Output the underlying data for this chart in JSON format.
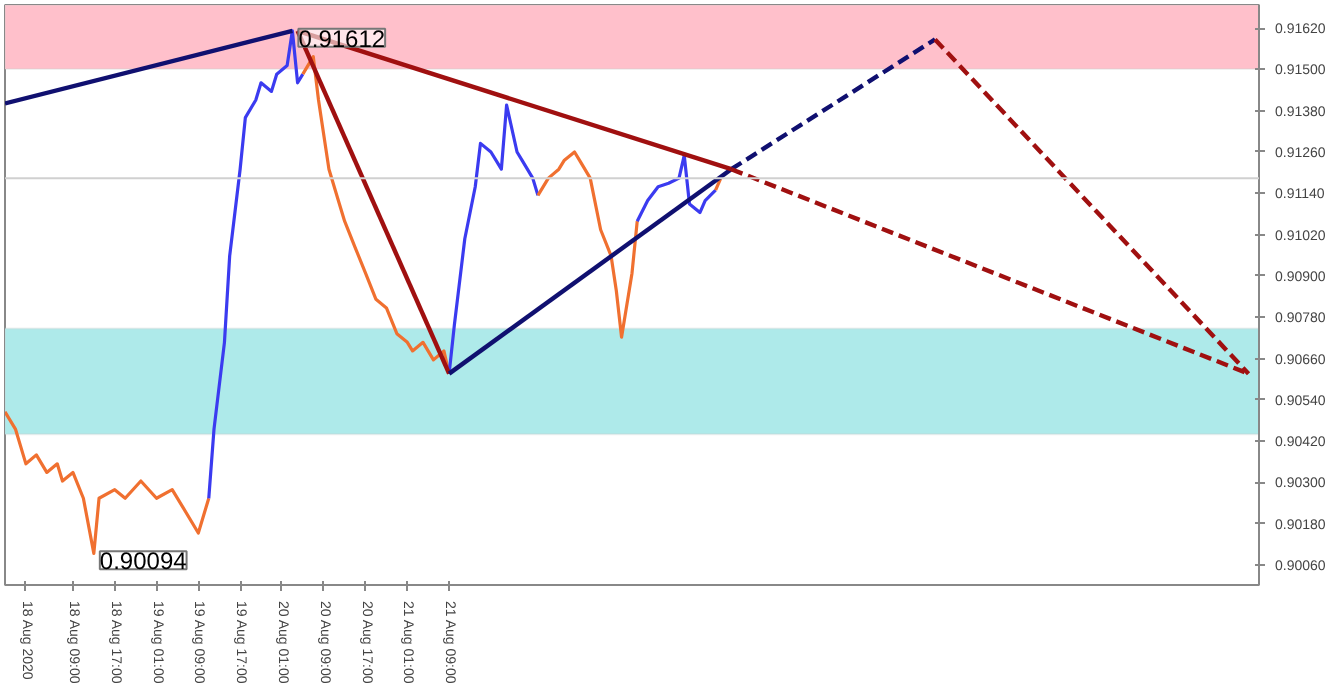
{
  "chart_data": {
    "type": "line",
    "grid": false,
    "xlim": [
      "2020-08-17T20:00",
      "2020-08-27T20:00"
    ],
    "ylim": [
      0.90002,
      0.91687
    ],
    "xticks": [
      {
        "value": "2020-08-18T00:00",
        "label": "18 Aug 2020"
      },
      {
        "value": "2020-08-18T09:00",
        "label": "18 Aug 09:00"
      },
      {
        "value": "2020-08-18T17:00",
        "label": "18 Aug 17:00"
      },
      {
        "value": "2020-08-19T01:00",
        "label": "19 Aug 01:00"
      },
      {
        "value": "2020-08-19T09:00",
        "label": "19 Aug 09:00"
      },
      {
        "value": "2020-08-19T17:00",
        "label": "19 Aug 17:00"
      },
      {
        "value": "2020-08-20T01:00",
        "label": "20 Aug 01:00"
      },
      {
        "value": "2020-08-20T09:00",
        "label": "20 Aug 09:00"
      },
      {
        "value": "2020-08-20T17:00",
        "label": "20 Aug 17:00"
      },
      {
        "value": "2020-08-21T01:00",
        "label": "21 Aug 01:00"
      },
      {
        "value": "2020-08-21T09:00",
        "label": "21 Aug 09:00"
      }
    ],
    "yticks": [
      {
        "value": 0.9006,
        "label": "0.90060"
      },
      {
        "value": 0.9018,
        "label": "0.90180"
      },
      {
        "value": 0.903,
        "label": "0.90300"
      },
      {
        "value": 0.9042,
        "label": "0.90420"
      },
      {
        "value": 0.9054,
        "label": "0.90540"
      },
      {
        "value": 0.9066,
        "label": "0.90660"
      },
      {
        "value": 0.9078,
        "label": "0.90780"
      },
      {
        "value": 0.909,
        "label": "0.90900"
      },
      {
        "value": 0.9102,
        "label": "0.91020"
      },
      {
        "value": 0.9114,
        "label": "0.91140"
      },
      {
        "value": 0.9126,
        "label": "0.91260"
      },
      {
        "value": 0.9138,
        "label": "0.91380"
      },
      {
        "value": 0.915,
        "label": "0.91500"
      },
      {
        "value": 0.9162,
        "label": "0.91620"
      }
    ],
    "bands": [
      {
        "axis": "y",
        "from": 0.91501,
        "to": 0.91687,
        "color": "#ffc0cb"
      },
      {
        "axis": "y",
        "from": 0.9044,
        "to": 0.90747,
        "color": "#aeeaea"
      }
    ],
    "ref_lines": [
      {
        "axis": "y",
        "value": 0.91184,
        "color": "#d0d0d0"
      }
    ],
    "annotations": [
      {
        "text": "0.91612",
        "x": "2020-08-20T03:00",
        "y": 0.91612
      },
      {
        "text": "0.90094",
        "x": "2020-08-18T13:00",
        "y": 0.90094
      }
    ],
    "series": [
      {
        "color": "#f07030",
        "x": [
          "2020-08-17T20:00",
          "2020-08-17T22:00",
          "2020-08-18T00:00",
          "2020-08-18T02:00",
          "2020-08-18T04:00",
          "2020-08-18T06:00",
          "2020-08-18T07:00",
          "2020-08-18T09:00",
          "2020-08-18T11:00",
          "2020-08-18T13:00",
          "2020-08-18T14:00",
          "2020-08-18T17:00",
          "2020-08-18T19:00",
          "2020-08-18T22:00",
          "2020-08-19T01:00",
          "2020-08-19T04:00",
          "2020-08-19T06:00",
          "2020-08-19T09:00",
          "2020-08-19T11:00"
        ],
        "values": [
          0.90505,
          0.90455,
          0.90354,
          0.9038,
          0.90329,
          0.90354,
          0.90304,
          0.90329,
          0.90254,
          0.90094,
          0.90254,
          0.90279,
          0.90254,
          0.90304,
          0.90254,
          0.90279,
          0.90229,
          0.90153,
          0.90254
        ]
      },
      {
        "color": "#3b3bf0",
        "x": [
          "2020-08-19T11:00",
          "2020-08-19T12:00",
          "2020-08-19T14:00",
          "2020-08-19T15:00",
          "2020-08-19T17:00",
          "2020-08-19T18:00",
          "2020-08-19T20:00",
          "2020-08-19T21:00",
          "2020-08-19T23:00",
          "2020-08-20T00:00",
          "2020-08-20T02:00",
          "2020-08-20T03:00",
          "2020-08-20T04:00",
          "2020-08-20T05:00"
        ],
        "values": [
          0.90254,
          0.90455,
          0.90707,
          0.90958,
          0.9121,
          0.9136,
          0.91411,
          0.91461,
          0.91436,
          0.91486,
          0.91511,
          0.91612,
          0.91461,
          0.91486
        ]
      },
      {
        "color": "#f07030",
        "x": [
          "2020-08-20T05:00",
          "2020-08-20T07:00",
          "2020-08-20T08:00",
          "2020-08-20T10:00",
          "2020-08-20T12:00",
          "2020-08-20T13:00",
          "2020-08-20T15:00",
          "2020-08-20T17:00",
          "2020-08-20T19:00",
          "2020-08-20T21:00",
          "2020-08-20T23:00",
          "2020-08-21T01:00",
          "2020-08-21T02:00",
          "2020-08-21T04:00",
          "2020-08-21T06:00",
          "2020-08-21T08:00",
          "2020-08-21T09:00"
        ],
        "values": [
          0.91486,
          0.91537,
          0.91411,
          0.9121,
          0.91109,
          0.91059,
          0.90983,
          0.90908,
          0.90832,
          0.90807,
          0.90732,
          0.90707,
          0.90682,
          0.90707,
          0.90656,
          0.90682,
          0.90616
        ]
      },
      {
        "color": "#3b3bf0",
        "x": [
          "2020-08-21T09:00",
          "2020-08-21T10:00",
          "2020-08-21T12:00",
          "2020-08-21T14:00",
          "2020-08-21T15:00",
          "2020-08-21T17:00",
          "2020-08-21T19:00",
          "2020-08-21T20:00",
          "2020-08-21T22:00",
          "2020-08-21T23:00",
          "2020-08-22T01:00",
          "2020-08-22T02:00"
        ],
        "values": [
          0.90616,
          0.90757,
          0.91008,
          0.91159,
          0.91285,
          0.9126,
          0.9121,
          0.91396,
          0.9126,
          0.91235,
          0.91184,
          0.91134
        ]
      },
      {
        "color": "#f07030",
        "x": [
          "2020-08-22T02:00",
          "2020-08-22T04:00",
          "2020-08-22T06:00",
          "2020-08-22T07:00",
          "2020-08-22T09:00",
          "2020-08-22T10:00",
          "2020-08-22T12:00",
          "2020-08-22T14:00",
          "2020-08-22T16:00",
          "2020-08-22T17:00",
          "2020-08-22T18:00",
          "2020-08-22T20:00",
          "2020-08-22T21:00"
        ],
        "values": [
          0.91134,
          0.91184,
          0.9121,
          0.91235,
          0.9126,
          0.91235,
          0.91184,
          0.91034,
          0.90958,
          0.90857,
          0.90722,
          0.90908,
          0.91059
        ]
      },
      {
        "color": "#3b3bf0",
        "x": [
          "2020-08-22T21:00",
          "2020-08-22T23:00",
          "2020-08-23T01:00",
          "2020-08-23T03:00",
          "2020-08-23T05:00",
          "2020-08-23T06:00",
          "2020-08-23T07:00",
          "2020-08-23T09:00",
          "2020-08-23T10:00",
          "2020-08-23T12:00"
        ],
        "values": [
          0.91059,
          0.91119,
          0.91159,
          0.91169,
          0.91184,
          0.9125,
          0.91109,
          0.91084,
          0.91119,
          0.91149
        ]
      },
      {
        "color": "#f07030",
        "x": [
          "2020-08-23T12:00",
          "2020-08-23T13:00"
        ],
        "values": [
          0.91149,
          0.91184
        ]
      },
      {
        "color": "#101070",
        "line_style": "solid",
        "x": [
          "2020-08-17T20:00",
          "2020-08-20T03:00"
        ],
        "values": [
          0.91401,
          0.91612
        ]
      },
      {
        "color": "#a01010",
        "line_style": "solid",
        "x": [
          "2020-08-20T04:00",
          "2020-08-21T09:00"
        ],
        "values": [
          0.91612,
          0.90616
        ]
      },
      {
        "color": "#101070",
        "line_style": "solid",
        "x": [
          "2020-08-21T09:00",
          "2020-08-23T15:00"
        ],
        "values": [
          0.90616,
          0.9121
        ]
      },
      {
        "color": "#101070",
        "line_style": "dashed",
        "x": [
          "2020-08-23T15:00",
          "2020-08-25T06:00"
        ],
        "values": [
          0.9121,
          0.91587
        ]
      },
      {
        "color": "#a01010",
        "line_style": "solid",
        "x": [
          "2020-08-20T04:00",
          "2020-08-23T15:00"
        ],
        "values": [
          0.91612,
          0.9121
        ]
      },
      {
        "color": "#a01010",
        "line_style": "dashed",
        "x": [
          "2020-08-23T15:00",
          "2020-08-27T18:00"
        ],
        "values": [
          0.9121,
          0.90616
        ]
      },
      {
        "color": "#a01010",
        "line_style": "dashed",
        "x": [
          "2020-08-25T06:00",
          "2020-08-27T18:00"
        ],
        "values": [
          0.91587,
          0.90616
        ]
      }
    ]
  }
}
